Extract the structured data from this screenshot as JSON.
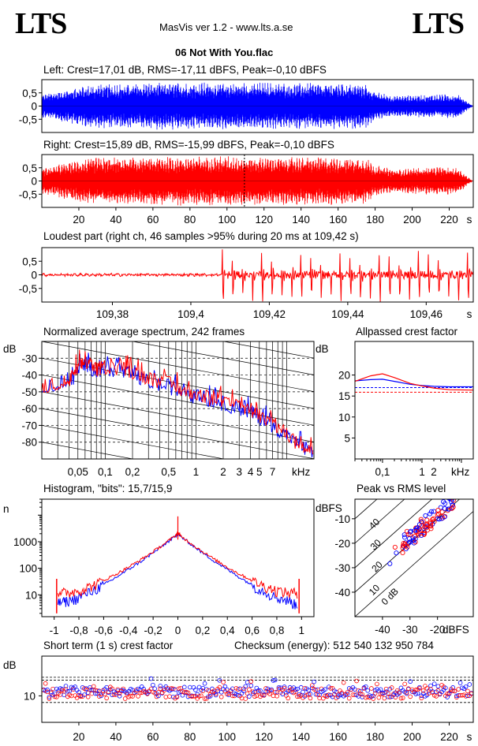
{
  "header": {
    "logo_left": "LTS",
    "logo_right": "LTS",
    "version": "MasVis ver 1.2 - www.lts.a.se",
    "file_title": "06 Not With You.flac"
  },
  "colors": {
    "left": "#0000ff",
    "right": "#ff0000",
    "grid": "#000000"
  },
  "chart_data": [
    {
      "type": "area",
      "name": "left-waveform",
      "title": "Left: Crest=17,01 dB, RMS=-17,11 dBFS, Peak=-0,10 dBFS",
      "ytick_labels": [
        "0,5",
        "0",
        "-0,5"
      ],
      "yticks": [
        0.5,
        0,
        -0.5
      ],
      "ylim": [
        -1,
        1
      ],
      "xlim": [
        0,
        233
      ],
      "envelope": [
        {
          "x": 0,
          "y": 0.45
        },
        {
          "x": 10,
          "y": 0.6
        },
        {
          "x": 20,
          "y": 0.75
        },
        {
          "x": 30,
          "y": 0.85
        },
        {
          "x": 40,
          "y": 0.85
        },
        {
          "x": 60,
          "y": 0.9
        },
        {
          "x": 80,
          "y": 0.9
        },
        {
          "x": 100,
          "y": 0.9
        },
        {
          "x": 120,
          "y": 0.9
        },
        {
          "x": 140,
          "y": 0.88
        },
        {
          "x": 160,
          "y": 0.9
        },
        {
          "x": 175,
          "y": 0.85
        },
        {
          "x": 180,
          "y": 0.55
        },
        {
          "x": 190,
          "y": 0.4
        },
        {
          "x": 200,
          "y": 0.42
        },
        {
          "x": 215,
          "y": 0.45
        },
        {
          "x": 225,
          "y": 0.45
        },
        {
          "x": 230,
          "y": 0.15
        },
        {
          "x": 233,
          "y": 0.0
        }
      ]
    },
    {
      "type": "area",
      "name": "right-waveform",
      "title": "Right: Crest=15,89 dB, RMS=-15,99 dBFS, Peak=-0,10 dBFS",
      "ytick_labels": [
        "0,5",
        "0",
        "-0,5"
      ],
      "yticks": [
        0.5,
        0,
        -0.5
      ],
      "ylim": [
        -1,
        1
      ],
      "xlim": [
        0,
        233
      ],
      "xtick_labels": [
        "20",
        "40",
        "60",
        "80",
        "100",
        "120",
        "140",
        "160",
        "180",
        "200",
        "220",
        "s"
      ],
      "xticks": [
        20,
        40,
        60,
        80,
        100,
        120,
        140,
        160,
        180,
        200,
        220
      ],
      "marker_x": 109.42,
      "envelope": [
        {
          "x": 0,
          "y": 0.5
        },
        {
          "x": 10,
          "y": 0.65
        },
        {
          "x": 20,
          "y": 0.8
        },
        {
          "x": 30,
          "y": 0.9
        },
        {
          "x": 60,
          "y": 0.92
        },
        {
          "x": 100,
          "y": 0.95
        },
        {
          "x": 120,
          "y": 0.92
        },
        {
          "x": 160,
          "y": 0.92
        },
        {
          "x": 175,
          "y": 0.88
        },
        {
          "x": 180,
          "y": 0.6
        },
        {
          "x": 190,
          "y": 0.45
        },
        {
          "x": 200,
          "y": 0.5
        },
        {
          "x": 215,
          "y": 0.55
        },
        {
          "x": 225,
          "y": 0.5
        },
        {
          "x": 230,
          "y": 0.15
        },
        {
          "x": 233,
          "y": 0.0
        }
      ]
    },
    {
      "type": "line",
      "name": "loudest-part",
      "title": "Loudest part (right ch, 46 samples >95% during 20 ms at 109,42 s)",
      "ytick_labels": [
        "0,5",
        "0",
        "-0,5"
      ],
      "yticks": [
        0.5,
        0,
        -0.5
      ],
      "ylim": [
        -1,
        1
      ],
      "xlim": [
        109.362,
        109.472
      ],
      "xtick_labels": [
        "109,38",
        "109,4",
        "109,42",
        "109,44",
        "109,46",
        "s"
      ],
      "xticks": [
        109.38,
        109.4,
        109.42,
        109.44,
        109.46
      ],
      "onset_x": 109.408,
      "peak_period": 0.0025
    },
    {
      "type": "line",
      "name": "spectrum",
      "title": "Normalized average spectrum, 242 frames",
      "ylabel": "dB",
      "xlabel": "kHz",
      "ytick_labels": [
        "-30",
        "-40",
        "-50",
        "-60",
        "-70",
        "-80"
      ],
      "yticks": [
        -30,
        -40,
        -50,
        -60,
        -70,
        -80
      ],
      "ylim": [
        -90,
        -20
      ],
      "xlim": [
        0.02,
        20
      ],
      "xscale": "log",
      "xtick_labels": [
        "0,05",
        "0,1",
        "0,2",
        "0,5",
        "1",
        "2",
        "3",
        "4",
        "5",
        "7",
        "kHz"
      ],
      "xticks": [
        0.05,
        0.1,
        0.2,
        0.5,
        1,
        2,
        3,
        4,
        5,
        7
      ],
      "series": [
        {
          "color": "#0000ff",
          "points": [
            [
              0.02,
              -50
            ],
            [
              0.03,
              -48
            ],
            [
              0.04,
              -45
            ],
            [
              0.05,
              -38
            ],
            [
              0.06,
              -33
            ],
            [
              0.08,
              -38
            ],
            [
              0.1,
              -36
            ],
            [
              0.15,
              -38
            ],
            [
              0.2,
              -40
            ],
            [
              0.3,
              -44
            ],
            [
              0.5,
              -47
            ],
            [
              0.7,
              -50
            ],
            [
              1,
              -53
            ],
            [
              1.5,
              -55
            ],
            [
              2,
              -57
            ],
            [
              3,
              -60
            ],
            [
              4,
              -62
            ],
            [
              5,
              -65
            ],
            [
              7,
              -70
            ],
            [
              10,
              -76
            ],
            [
              14,
              -83
            ],
            [
              20,
              -88
            ]
          ]
        },
        {
          "color": "#ff0000",
          "points": [
            [
              0.02,
              -50
            ],
            [
              0.03,
              -48
            ],
            [
              0.04,
              -44
            ],
            [
              0.05,
              -36
            ],
            [
              0.06,
              -32
            ],
            [
              0.08,
              -37
            ],
            [
              0.1,
              -35
            ],
            [
              0.15,
              -36
            ],
            [
              0.2,
              -38
            ],
            [
              0.3,
              -42
            ],
            [
              0.5,
              -45
            ],
            [
              0.7,
              -49
            ],
            [
              1,
              -52
            ],
            [
              1.5,
              -54
            ],
            [
              2,
              -56
            ],
            [
              3,
              -59
            ],
            [
              4,
              -61
            ],
            [
              5,
              -64
            ],
            [
              7,
              -69
            ],
            [
              10,
              -75
            ],
            [
              14,
              -82
            ],
            [
              20,
              -87
            ]
          ]
        }
      ]
    },
    {
      "type": "line",
      "name": "allpassed-crest",
      "title": "Allpassed crest factor",
      "ylabel": "dB",
      "xlabel": "kHz",
      "ytick_labels": [
        "20",
        "15",
        "10",
        "5"
      ],
      "yticks": [
        20,
        15,
        10,
        5
      ],
      "ylim": [
        0,
        28
      ],
      "xlim": [
        0.02,
        20
      ],
      "xscale": "log",
      "xtick_labels": [
        "0,1",
        "1",
        "2",
        "kHz"
      ],
      "xticks": [
        0.1,
        1,
        2
      ],
      "ref_lines": [
        17.0,
        15.9
      ],
      "series": [
        {
          "color": "#0000ff",
          "points": [
            [
              0.02,
              18.6
            ],
            [
              0.05,
              18.9
            ],
            [
              0.1,
              19.0
            ],
            [
              0.2,
              18.5
            ],
            [
              0.5,
              17.8
            ],
            [
              1,
              17.5
            ],
            [
              2,
              17.3
            ],
            [
              5,
              17.2
            ],
            [
              20,
              17.2
            ]
          ]
        },
        {
          "color": "#ff0000",
          "points": [
            [
              0.02,
              18.5
            ],
            [
              0.05,
              19.8
            ],
            [
              0.1,
              20.3
            ],
            [
              0.2,
              19.4
            ],
            [
              0.5,
              18.0
            ],
            [
              1,
              17.4
            ],
            [
              2,
              16.9
            ],
            [
              5,
              16.5
            ],
            [
              20,
              16.4
            ]
          ]
        }
      ]
    },
    {
      "type": "line",
      "name": "histogram",
      "title": "Histogram, \"bits\": 15,7/15,9",
      "ylabel": "n",
      "yscale": "log",
      "ytick_labels": [
        "1000",
        "100",
        "10"
      ],
      "yticks": [
        1000,
        100,
        10
      ],
      "ylim": [
        1.5,
        40000
      ],
      "xlim": [
        -1.1,
        1.1
      ],
      "xtick_labels": [
        "-1",
        "-0,8",
        "-0,6",
        "-0,4",
        "-0,2",
        "0",
        "0,2",
        "0,4",
        "0,6",
        "0,8",
        "1"
      ],
      "xticks": [
        -1,
        -0.8,
        -0.6,
        -0.4,
        -0.2,
        0,
        0.2,
        0.4,
        0.6,
        0.8,
        1
      ],
      "series": [
        {
          "color": "#0000ff",
          "points": [
            [
              -0.97,
              5
            ],
            [
              -0.9,
              6
            ],
            [
              -0.8,
              8
            ],
            [
              -0.7,
              14
            ],
            [
              -0.6,
              24
            ],
            [
              -0.5,
              45
            ],
            [
              -0.4,
              90
            ],
            [
              -0.3,
              180
            ],
            [
              -0.2,
              380
            ],
            [
              -0.1,
              850
            ],
            [
              -0.02,
              1600
            ],
            [
              0,
              2000
            ],
            [
              0.02,
              1600
            ],
            [
              0.1,
              850
            ],
            [
              0.2,
              380
            ],
            [
              0.3,
              180
            ],
            [
              0.4,
              90
            ],
            [
              0.5,
              45
            ],
            [
              0.6,
              24
            ],
            [
              0.7,
              14
            ],
            [
              0.8,
              8
            ],
            [
              0.9,
              6
            ],
            [
              0.97,
              4
            ]
          ]
        },
        {
          "color": "#ff0000",
          "points": [
            [
              -0.97,
              14
            ],
            [
              -0.9,
              12
            ],
            [
              -0.8,
              15
            ],
            [
              -0.7,
              22
            ],
            [
              -0.6,
              35
            ],
            [
              -0.5,
              60
            ],
            [
              -0.4,
              110
            ],
            [
              -0.3,
              210
            ],
            [
              -0.2,
              420
            ],
            [
              -0.1,
              900
            ],
            [
              -0.02,
              1700
            ],
            [
              0,
              2200
            ],
            [
              0.02,
              1700
            ],
            [
              0.1,
              900
            ],
            [
              0.2,
              420
            ],
            [
              0.3,
              210
            ],
            [
              0.4,
              110
            ],
            [
              0.5,
              60
            ],
            [
              0.6,
              35
            ],
            [
              0.7,
              22
            ],
            [
              0.8,
              15
            ],
            [
              0.9,
              12
            ],
            [
              0.97,
              13
            ]
          ]
        }
      ]
    },
    {
      "type": "scatter",
      "name": "peak-vs-rms",
      "title": "Peak vs RMS level",
      "ylabel": "dBFS",
      "xlabel": "dBFS",
      "ytick_labels": [
        "-10",
        "-20",
        "-30",
        "-40"
      ],
      "yticks": [
        -10,
        -20,
        -30,
        -40
      ],
      "ylim": [
        -50,
        -2
      ],
      "xtick_labels": [
        "-40",
        "-30",
        "-20"
      ],
      "xticks": [
        -40,
        -30,
        -20
      ],
      "xlim": [
        -50,
        -7
      ],
      "diagonal_labels": [
        "40",
        "30",
        "20",
        "10",
        "0 dB"
      ],
      "diagonal_offsets": [
        40,
        30,
        20,
        10,
        0
      ],
      "cluster": {
        "x_from": -33,
        "x_to": -13,
        "spread": 4
      }
    },
    {
      "type": "scatter",
      "name": "short-term-crest",
      "title": "Short term (1 s) crest factor",
      "ylabel": "dB",
      "ytick_labels": [
        "10"
      ],
      "yticks": [
        10
      ],
      "ylim": [
        0,
        25
      ],
      "xlim": [
        0,
        233
      ],
      "xtick_labels": [
        "20",
        "40",
        "60",
        "80",
        "100",
        "120",
        "140",
        "160",
        "180",
        "200",
        "220",
        "s"
      ],
      "xticks": [
        20,
        40,
        60,
        80,
        100,
        120,
        140,
        160,
        180,
        200,
        220
      ],
      "ref_lines": [
        17.0,
        15.9,
        7.5
      ],
      "mean": 11.5
    }
  ],
  "checksum": "Checksum (energy):   512 540 132 950 784"
}
